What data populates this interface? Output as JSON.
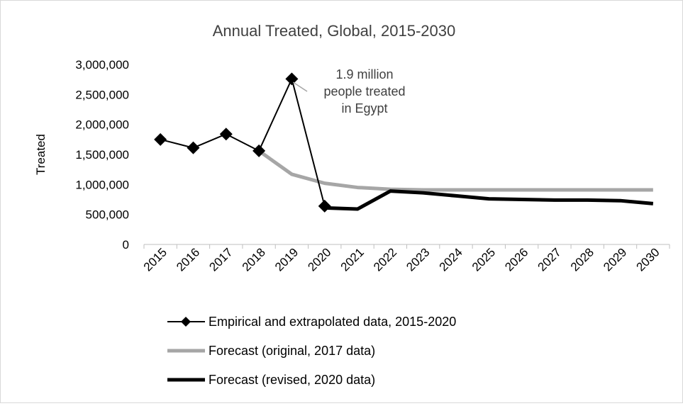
{
  "chart_data": {
    "type": "line",
    "title": "Annual Treated, Global, 2015-2030",
    "ylabel": "Treated",
    "xlabel": "",
    "ylim": [
      0,
      3000000
    ],
    "yticks": [
      0,
      500000,
      1000000,
      1500000,
      2000000,
      2500000,
      3000000
    ],
    "ytick_labels": [
      "0",
      "500,000",
      "1,000,000",
      "1,500,000",
      "2,000,000",
      "2,500,000",
      "3,000,000"
    ],
    "categories": [
      "2015",
      "2016",
      "2017",
      "2018",
      "2019",
      "2020",
      "2021",
      "2022",
      "2023",
      "2024",
      "2025",
      "2026",
      "2027",
      "2028",
      "2029",
      "2030"
    ],
    "grid": false,
    "legend_position": "bottom",
    "annotation": {
      "lines": [
        "1.9 million",
        "people treated",
        "in Egypt"
      ],
      "points_to": {
        "x": "2019",
        "y": 2750000
      }
    },
    "series": [
      {
        "name": "Empirical and extrapolated data, 2015-2020",
        "color": "#000000",
        "marker": "diamond",
        "values": [
          1750000,
          1610000,
          1840000,
          1560000,
          2760000,
          640000,
          null,
          null,
          null,
          null,
          null,
          null,
          null,
          null,
          null,
          null
        ]
      },
      {
        "name": "Forecast (original, 2017 data)",
        "color": "#a6a6a6",
        "marker": "none",
        "values": [
          null,
          null,
          null,
          1560000,
          1170000,
          1020000,
          950000,
          920000,
          910000,
          910000,
          910000,
          910000,
          910000,
          910000,
          910000,
          910000
        ]
      },
      {
        "name": "Forecast (revised, 2020 data)",
        "color": "#000000",
        "marker": "none",
        "values": [
          null,
          null,
          null,
          null,
          null,
          610000,
          590000,
          890000,
          860000,
          810000,
          760000,
          750000,
          740000,
          740000,
          730000,
          680000
        ]
      }
    ]
  }
}
